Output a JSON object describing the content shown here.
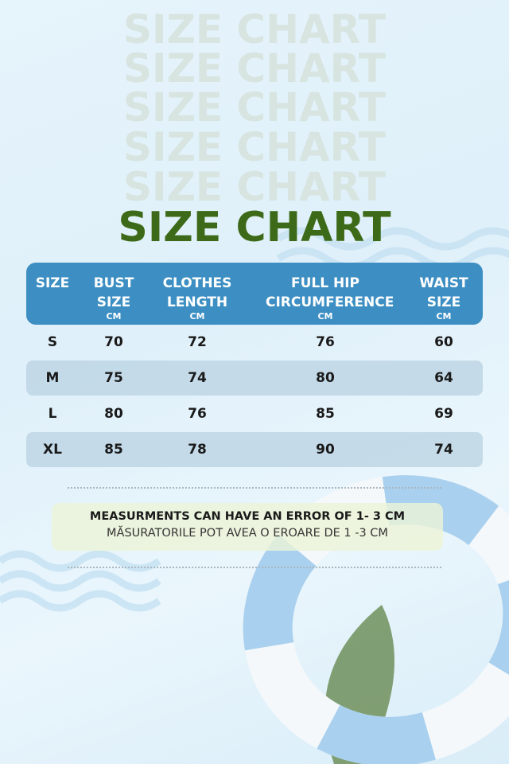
{
  "title": "SIZE CHART",
  "ghost_title": "SIZE CHART",
  "colors": {
    "title": "#3d6a18",
    "header": "#3d8fc3",
    "ghost": "#d7e4e0"
  },
  "table": {
    "headers": [
      {
        "label": "SIZE",
        "unit": ""
      },
      {
        "label": "BUST SIZE",
        "unit": "CM"
      },
      {
        "label": "CLOTHES LENGTH",
        "unit": "CM"
      },
      {
        "label": "FULL HIP CIRCUMFERENCE",
        "unit": "CM"
      },
      {
        "label": "WAIST SIZE",
        "unit": "CM"
      }
    ],
    "rows": [
      [
        "S",
        "70",
        "72",
        "76",
        "60"
      ],
      [
        "M",
        "75",
        "74",
        "80",
        "64"
      ],
      [
        "L",
        "80",
        "76",
        "85",
        "69"
      ],
      [
        "XL",
        "85",
        "78",
        "90",
        "74"
      ]
    ]
  },
  "note": {
    "line1": "MEASURMENTS CAN HAVE AN ERROR OF 1- 3 CM",
    "line2": "MĂSURATORILE POT AVEA O EROARE DE 1 -3 CM"
  }
}
